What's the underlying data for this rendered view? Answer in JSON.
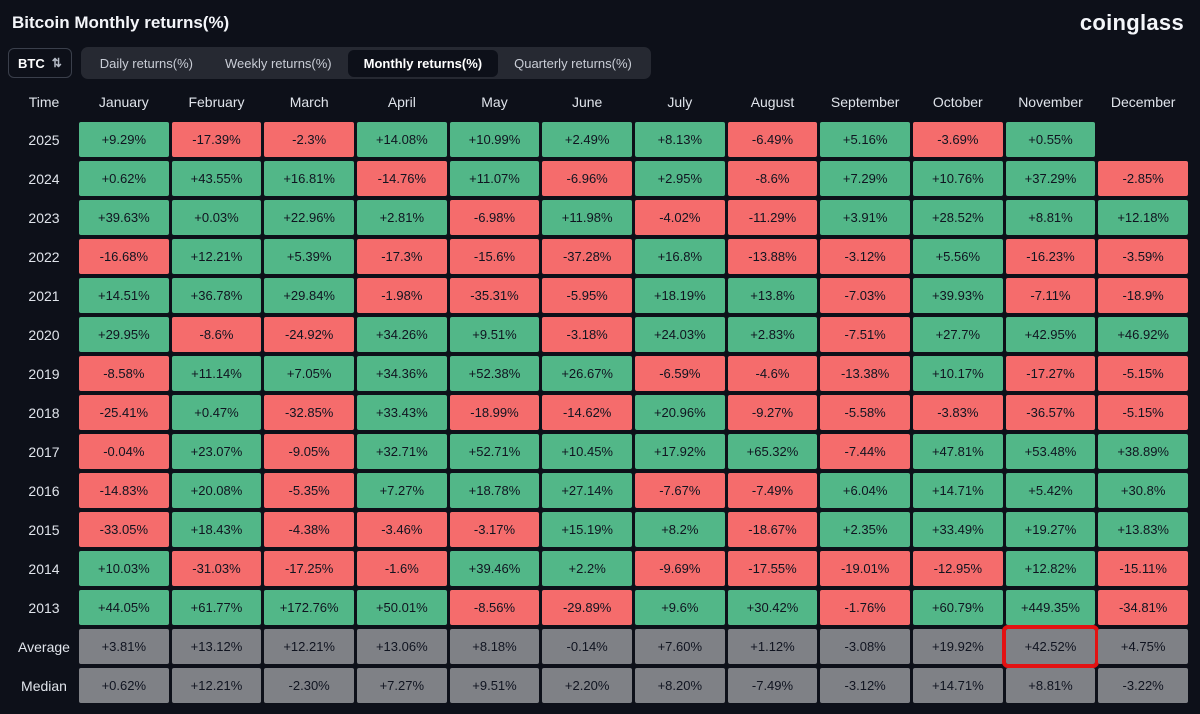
{
  "header": {
    "title": "Bitcoin Monthly returns(%)",
    "logo": "coinglass"
  },
  "toolbar": {
    "coin_selector": "BTC",
    "tabs": [
      {
        "label": "Daily returns(%)",
        "active": false
      },
      {
        "label": "Weekly returns(%)",
        "active": false
      },
      {
        "label": "Monthly returns(%)",
        "active": true
      },
      {
        "label": "Quarterly returns(%)",
        "active": false
      }
    ]
  },
  "chart_data": {
    "type": "heatmap",
    "title": "Bitcoin Monthly returns(%)",
    "columns": [
      "Time",
      "January",
      "February",
      "March",
      "April",
      "May",
      "June",
      "July",
      "August",
      "September",
      "October",
      "November",
      "December"
    ],
    "rows": [
      {
        "label": "2025",
        "values": [
          "+9.29%",
          "-17.39%",
          "-2.3%",
          "+14.08%",
          "+10.99%",
          "+2.49%",
          "+8.13%",
          "-6.49%",
          "+5.16%",
          "-3.69%",
          "+0.55%",
          null
        ]
      },
      {
        "label": "2024",
        "values": [
          "+0.62%",
          "+43.55%",
          "+16.81%",
          "-14.76%",
          "+11.07%",
          "-6.96%",
          "+2.95%",
          "-8.6%",
          "+7.29%",
          "+10.76%",
          "+37.29%",
          "-2.85%"
        ]
      },
      {
        "label": "2023",
        "values": [
          "+39.63%",
          "+0.03%",
          "+22.96%",
          "+2.81%",
          "-6.98%",
          "+11.98%",
          "-4.02%",
          "-11.29%",
          "+3.91%",
          "+28.52%",
          "+8.81%",
          "+12.18%"
        ]
      },
      {
        "label": "2022",
        "values": [
          "-16.68%",
          "+12.21%",
          "+5.39%",
          "-17.3%",
          "-15.6%",
          "-37.28%",
          "+16.8%",
          "-13.88%",
          "-3.12%",
          "+5.56%",
          "-16.23%",
          "-3.59%"
        ]
      },
      {
        "label": "2021",
        "values": [
          "+14.51%",
          "+36.78%",
          "+29.84%",
          "-1.98%",
          "-35.31%",
          "-5.95%",
          "+18.19%",
          "+13.8%",
          "-7.03%",
          "+39.93%",
          "-7.11%",
          "-18.9%"
        ]
      },
      {
        "label": "2020",
        "values": [
          "+29.95%",
          "-8.6%",
          "-24.92%",
          "+34.26%",
          "+9.51%",
          "-3.18%",
          "+24.03%",
          "+2.83%",
          "-7.51%",
          "+27.7%",
          "+42.95%",
          "+46.92%"
        ]
      },
      {
        "label": "2019",
        "values": [
          "-8.58%",
          "+11.14%",
          "+7.05%",
          "+34.36%",
          "+52.38%",
          "+26.67%",
          "-6.59%",
          "-4.6%",
          "-13.38%",
          "+10.17%",
          "-17.27%",
          "-5.15%"
        ]
      },
      {
        "label": "2018",
        "values": [
          "-25.41%",
          "+0.47%",
          "-32.85%",
          "+33.43%",
          "-18.99%",
          "-14.62%",
          "+20.96%",
          "-9.27%",
          "-5.58%",
          "-3.83%",
          "-36.57%",
          "-5.15%"
        ]
      },
      {
        "label": "2017",
        "values": [
          "-0.04%",
          "+23.07%",
          "-9.05%",
          "+32.71%",
          "+52.71%",
          "+10.45%",
          "+17.92%",
          "+65.32%",
          "-7.44%",
          "+47.81%",
          "+53.48%",
          "+38.89%"
        ]
      },
      {
        "label": "2016",
        "values": [
          "-14.83%",
          "+20.08%",
          "-5.35%",
          "+7.27%",
          "+18.78%",
          "+27.14%",
          "-7.67%",
          "-7.49%",
          "+6.04%",
          "+14.71%",
          "+5.42%",
          "+30.8%"
        ]
      },
      {
        "label": "2015",
        "values": [
          "-33.05%",
          "+18.43%",
          "-4.38%",
          "-3.46%",
          "-3.17%",
          "+15.19%",
          "+8.2%",
          "-18.67%",
          "+2.35%",
          "+33.49%",
          "+19.27%",
          "+13.83%"
        ]
      },
      {
        "label": "2014",
        "values": [
          "+10.03%",
          "-31.03%",
          "-17.25%",
          "-1.6%",
          "+39.46%",
          "+2.2%",
          "-9.69%",
          "-17.55%",
          "-19.01%",
          "-12.95%",
          "+12.82%",
          "-15.11%"
        ]
      },
      {
        "label": "2013",
        "values": [
          "+44.05%",
          "+61.77%",
          "+172.76%",
          "+50.01%",
          "-8.56%",
          "-29.89%",
          "+9.6%",
          "+30.42%",
          "-1.76%",
          "+60.79%",
          "+449.35%",
          "-34.81%"
        ]
      },
      {
        "label": "Average",
        "neutral": true,
        "values": [
          "+3.81%",
          "+13.12%",
          "+12.21%",
          "+13.06%",
          "+8.18%",
          "-0.14%",
          "+7.60%",
          "+1.12%",
          "-3.08%",
          "+19.92%",
          "+42.52%",
          "+4.75%"
        ]
      },
      {
        "label": "Median",
        "neutral": true,
        "values": [
          "+0.62%",
          "+12.21%",
          "-2.30%",
          "+7.27%",
          "+9.51%",
          "+2.20%",
          "+8.20%",
          "-7.49%",
          "-3.12%",
          "+14.71%",
          "+8.81%",
          "-3.22%"
        ]
      }
    ],
    "highlight": {
      "row": "Average",
      "column": "November",
      "value": "+42.52%"
    },
    "colors": {
      "positive": "#52b788",
      "negative": "#f56c6c",
      "neutral": "#7f8186",
      "highlight_border": "#e31212"
    }
  }
}
